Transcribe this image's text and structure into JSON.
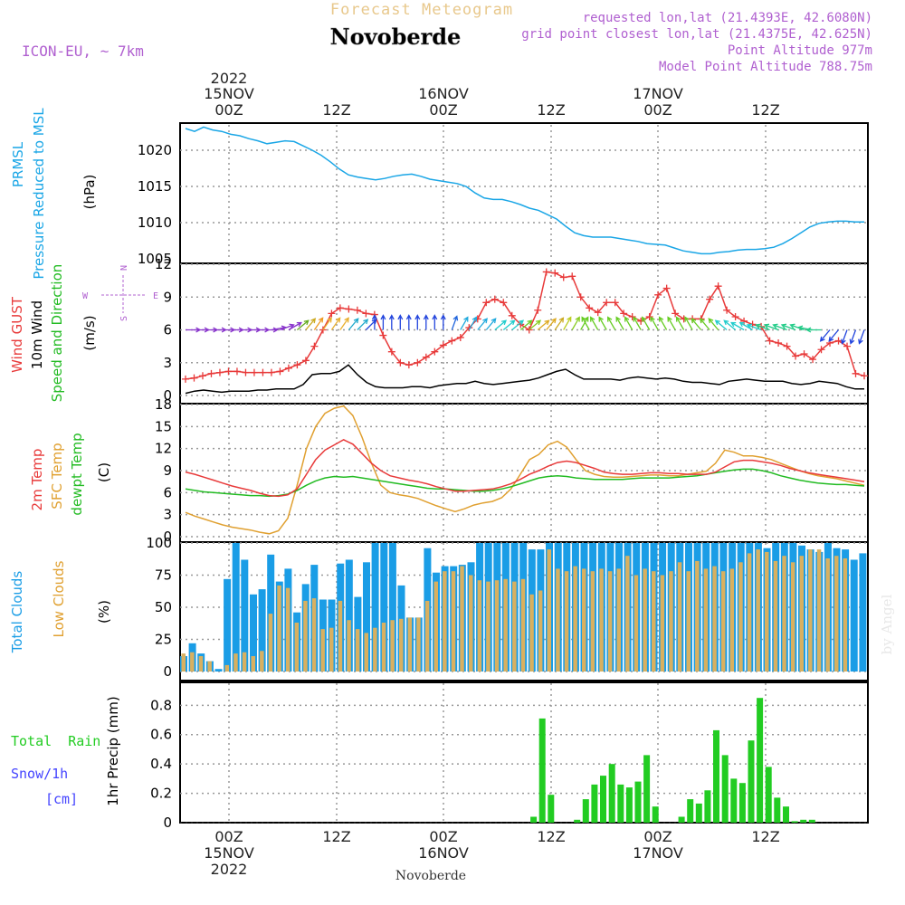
{
  "header": {
    "forecast_title": "Forecast Meteogram",
    "location_name": "Novoberde",
    "model_label": "ICON-EU, ~ 7km",
    "requested_point": "requested lon,lat (21.4393E, 42.6080N)",
    "grid_point": "grid point closest lon,lat (21.4375E, 42.625N)",
    "point_altitude": "Point Altitude 977m",
    "model_altitude": "Model Point Altitude 788.75m"
  },
  "footer": {
    "location_name": "Novoberde",
    "watermark": "by Angel"
  },
  "colors": {
    "pressure": "#1aa6e6",
    "gust": "#e83a3a",
    "wind": "#000000",
    "temp2m": "#e83a3a",
    "sfc": "#e0a030",
    "dewpt": "#22bb22",
    "total_clouds": "#1a9de6",
    "low_clouds": "#d8b060",
    "rain": "#22cc22",
    "snow": "#4444ff",
    "header_purple": "#b060d0",
    "title_tan": "#e8c88c"
  },
  "chart_data": [
    {
      "type": "line",
      "ylabel_lines": [
        "PRMSL",
        "Pressure Reduced to MSL"
      ],
      "unit": "(hPa)",
      "ylim": [
        1005,
        1023.5
      ],
      "yticks": [
        1005,
        1010,
        1015,
        1020
      ],
      "x_top_ticks": [
        "00Z",
        "12Z",
        "00Z",
        "12Z",
        "00Z",
        "12Z"
      ],
      "x_top_dates": [
        "15NOV",
        "16NOV",
        "17NOV"
      ],
      "x_top_year": "2022",
      "series": [
        {
          "values": [
            1023.0,
            1022.6,
            1023.2,
            1022.8,
            1022.6,
            1022.2,
            1022.0,
            1021.6,
            1021.3,
            1020.9,
            1021.1,
            1021.3,
            1021.2,
            1020.6,
            1020.0,
            1019.3,
            1018.4,
            1017.4,
            1016.6,
            1016.3,
            1016.1,
            1015.9,
            1016.1,
            1016.4,
            1016.6,
            1016.7,
            1016.4,
            1016.0,
            1015.8,
            1015.6,
            1015.4,
            1015.0,
            1014.1,
            1013.4,
            1013.2,
            1013.2,
            1012.9,
            1012.5,
            1012.0,
            1011.7,
            1011.1,
            1010.5,
            1009.5,
            1008.6,
            1008.2,
            1008.0,
            1008.0,
            1008.0,
            1007.8,
            1007.6,
            1007.4,
            1007.1,
            1007.0,
            1006.9,
            1006.5,
            1006.1,
            1005.9,
            1005.7,
            1005.7,
            1005.9,
            1006.0,
            1006.2,
            1006.3,
            1006.3,
            1006.4,
            1006.6,
            1007.1,
            1007.8,
            1008.6,
            1009.4,
            1009.9,
            1010.1,
            1010.2,
            1010.2,
            1010.1,
            1010.1
          ]
        }
      ]
    },
    {
      "type": "line",
      "ylabel_lines": [
        "Wind GUST",
        "10m Wind",
        "Speed and Direction"
      ],
      "unit": "(m/s)",
      "compass": {
        "n": "N",
        "s": "S",
        "w": "W",
        "e": "E"
      },
      "ylim": [
        0,
        12
      ],
      "yticks": [
        0,
        3,
        6,
        9,
        12
      ],
      "series": [
        {
          "name": "Wind GUST",
          "values": [
            1.5,
            1.6,
            1.8,
            2.0,
            2.1,
            2.2,
            2.2,
            2.1,
            2.1,
            2.1,
            2.1,
            2.2,
            2.5,
            2.8,
            3.2,
            4.5,
            6.0,
            7.5,
            8.0,
            7.9,
            7.8,
            7.5,
            7.4,
            5.5,
            4.0,
            3.0,
            2.8,
            3.0,
            3.5,
            4.0,
            4.6,
            5.0,
            5.3,
            6.2,
            7.0,
            8.5,
            8.8,
            8.5,
            7.3,
            6.5,
            6.0,
            7.8,
            11.3,
            11.2,
            10.8,
            10.9,
            9.0,
            8.0,
            7.6,
            8.5,
            8.5,
            7.5,
            7.2,
            6.8,
            7.2,
            9.2,
            9.8,
            7.5,
            7.0,
            7.0,
            7.0,
            8.8,
            10.0,
            7.8,
            7.2,
            6.8,
            6.5,
            6.3,
            5.0,
            4.8,
            4.5,
            3.6,
            3.8,
            3.3,
            4.2,
            4.8,
            5.0,
            4.5,
            2.0,
            1.8
          ]
        },
        {
          "name": "10m Wind",
          "values": [
            0.2,
            0.4,
            0.5,
            0.4,
            0.3,
            0.4,
            0.4,
            0.4,
            0.5,
            0.5,
            0.6,
            0.6,
            0.6,
            1.0,
            1.9,
            2.0,
            2.0,
            2.2,
            2.8,
            1.9,
            1.2,
            0.8,
            0.7,
            0.7,
            0.7,
            0.8,
            0.8,
            0.7,
            0.9,
            1.0,
            1.1,
            1.1,
            1.3,
            1.1,
            1.0,
            1.1,
            1.2,
            1.3,
            1.4,
            1.6,
            1.9,
            2.2,
            2.4,
            1.9,
            1.5,
            1.5,
            1.5,
            1.5,
            1.4,
            1.6,
            1.7,
            1.6,
            1.5,
            1.6,
            1.5,
            1.3,
            1.2,
            1.2,
            1.1,
            1.0,
            1.3,
            1.4,
            1.5,
            1.4,
            1.3,
            1.3,
            1.3,
            1.1,
            1.0,
            1.1,
            1.3,
            1.2,
            1.1,
            0.8,
            0.6,
            0.6
          ]
        }
      ],
      "wind_directions_deg": [
        270,
        270,
        270,
        270,
        270,
        270,
        270,
        270,
        270,
        270,
        260,
        250,
        240,
        230,
        220,
        215,
        215,
        215,
        215,
        220,
        225,
        225,
        180,
        180,
        180,
        180,
        180,
        180,
        180,
        180,
        180,
        200,
        210,
        210,
        220,
        220,
        230,
        230,
        230,
        230,
        230,
        230,
        220,
        215,
        210,
        210,
        210,
        150,
        150,
        150,
        150,
        150,
        150,
        150,
        150,
        150,
        150,
        150,
        150,
        150,
        140,
        140,
        140,
        130,
        130,
        120,
        120,
        110,
        110,
        110,
        110,
        110,
        110,
        100,
        90,
        40,
        40,
        20,
        20,
        20
      ],
      "wind_arrow_colors": [
        "#8833cc",
        "#8833cc",
        "#8833cc",
        "#8833cc",
        "#8833cc",
        "#8833cc",
        "#8833cc",
        "#8833cc",
        "#8833cc",
        "#8833cc",
        "#8833cc",
        "#8833cc",
        "#8833cc",
        "#66aa22",
        "#ccaa22",
        "#ee9922",
        "#e8b030",
        "#e8b030",
        "#e8b030",
        "#22aacc",
        "#22aacc",
        "#2244dd",
        "#2244dd",
        "#2244dd",
        "#2244dd",
        "#2244dd",
        "#2244dd",
        "#2244dd",
        "#2244dd",
        "#2244dd",
        "#2244dd",
        "#2266dd",
        "#22aadd",
        "#22aadd",
        "#22aadd",
        "#22aadd",
        "#22cccc",
        "#22cccc",
        "#22cccc",
        "#66cc22",
        "#88cc22",
        "#ddaa22",
        "#ddaa22",
        "#ccaa22",
        "#bbcc22",
        "#88cc22",
        "#66cc22",
        "#66cc22",
        "#66cc22",
        "#66cc22",
        "#66cc22",
        "#66cc22",
        "#66cc22",
        "#66cc22",
        "#66cc22",
        "#66cc22",
        "#66cc22",
        "#66cc22",
        "#66cc22",
        "#66cc22",
        "#66cc22",
        "#66cc22",
        "#66cc22",
        "#22cccc",
        "#22cccc",
        "#22cccc",
        "#22cccc",
        "#22cccc",
        "#22cc88",
        "#22cc88",
        "#22cc88",
        "#22cc88",
        "#22cc88",
        "#22cc88",
        "#22cc88",
        "#2244dd",
        "#2244dd",
        "#2244dd",
        "#2244dd",
        "#2244dd"
      ]
    },
    {
      "type": "line",
      "ylabel_lines": [
        "2m Temp",
        "SFC Temp",
        "dewpt Temp"
      ],
      "unit": "(C)",
      "ylim": [
        0,
        18
      ],
      "yticks": [
        0,
        3,
        6,
        9,
        12,
        15,
        18
      ],
      "series": [
        {
          "name": "2m Temp",
          "values": [
            8.8,
            8.5,
            8.1,
            7.7,
            7.3,
            6.9,
            6.6,
            6.3,
            5.9,
            5.6,
            5.5,
            5.7,
            6.5,
            8.5,
            10.5,
            11.8,
            12.5,
            13.2,
            12.6,
            11.3,
            10.0,
            9.0,
            8.3,
            8.0,
            7.7,
            7.5,
            7.2,
            6.8,
            6.5,
            6.2,
            6.2,
            6.3,
            6.4,
            6.5,
            6.8,
            7.2,
            7.8,
            8.5,
            9.0,
            9.6,
            10.1,
            10.3,
            10.1,
            9.7,
            9.3,
            8.8,
            8.6,
            8.5,
            8.5,
            8.6,
            8.7,
            8.7,
            8.6,
            8.6,
            8.5,
            8.5,
            8.5,
            8.8,
            9.5,
            10.2,
            10.4,
            10.4,
            10.2,
            10.0,
            9.7,
            9.3,
            9.0,
            8.7,
            8.5,
            8.3,
            8.1,
            7.9,
            7.7,
            7.5
          ]
        },
        {
          "name": "SFC Temp",
          "values": [
            3.3,
            2.8,
            2.4,
            2.0,
            1.6,
            1.3,
            1.1,
            0.9,
            0.6,
            0.4,
            0.8,
            2.5,
            7.0,
            12.0,
            15.0,
            16.8,
            17.5,
            17.8,
            16.5,
            13.5,
            10.0,
            7.0,
            6.0,
            5.7,
            5.5,
            5.2,
            4.7,
            4.2,
            3.8,
            3.4,
            3.8,
            4.3,
            4.6,
            4.8,
            5.3,
            6.5,
            8.5,
            10.5,
            11.2,
            12.5,
            13.0,
            12.2,
            10.5,
            9.0,
            8.5,
            8.2,
            8.1,
            8.1,
            8.2,
            8.3,
            8.4,
            8.4,
            8.3,
            8.3,
            8.5,
            8.7,
            8.9,
            10.0,
            11.8,
            11.5,
            11.0,
            11.0,
            10.8,
            10.5,
            10.0,
            9.5,
            9.0,
            8.6,
            8.3,
            8.1,
            7.9,
            7.6,
            7.3,
            7.0
          ]
        },
        {
          "name": "dewpt Temp",
          "values": [
            6.5,
            6.3,
            6.1,
            6.0,
            5.9,
            5.8,
            5.7,
            5.6,
            5.6,
            5.5,
            5.6,
            5.8,
            6.3,
            7.0,
            7.6,
            8.0,
            8.2,
            8.1,
            8.2,
            8.0,
            7.8,
            7.6,
            7.4,
            7.2,
            7.0,
            6.8,
            6.6,
            6.5,
            6.5,
            6.4,
            6.3,
            6.2,
            6.2,
            6.3,
            6.5,
            6.8,
            7.2,
            7.6,
            8.0,
            8.2,
            8.3,
            8.2,
            8.0,
            7.9,
            7.8,
            7.8,
            7.8,
            7.8,
            7.9,
            8.0,
            8.0,
            8.0,
            8.0,
            8.1,
            8.2,
            8.3,
            8.5,
            8.7,
            8.9,
            9.1,
            9.2,
            9.2,
            9.0,
            8.7,
            8.3,
            8.0,
            7.7,
            7.5,
            7.3,
            7.2,
            7.1,
            7.1,
            7.0,
            6.9
          ]
        }
      ]
    },
    {
      "type": "bar",
      "ylabel_lines": [
        "Total Clouds",
        "Low Clouds"
      ],
      "unit": "(%)",
      "ylim": [
        0,
        100
      ],
      "yticks": [
        0,
        25,
        50,
        75,
        100
      ],
      "series": [
        {
          "name": "Total Clouds",
          "values": [
            12,
            22,
            14,
            8,
            2,
            72,
            100,
            87,
            60,
            64,
            91,
            70,
            80,
            46,
            68,
            83,
            56,
            56,
            84,
            87,
            58,
            85,
            100,
            100,
            100,
            67,
            42,
            42,
            96,
            77,
            82,
            82,
            83,
            85,
            100,
            100,
            100,
            100,
            100,
            100,
            95,
            95,
            100,
            100,
            100,
            100,
            100,
            100,
            100,
            100,
            100,
            100,
            100,
            100,
            100,
            100,
            100,
            100,
            100,
            100,
            100,
            100,
            100,
            100,
            100,
            100,
            100,
            96,
            100,
            100,
            100,
            98,
            95,
            93,
            100,
            96,
            95,
            87,
            92
          ]
        },
        {
          "name": "Low Clouds",
          "values": [
            14,
            15,
            12,
            8,
            0,
            5,
            14,
            15,
            12,
            16,
            45,
            67,
            65,
            38,
            55,
            57,
            33,
            34,
            55,
            40,
            33,
            30,
            34,
            38,
            40,
            41,
            42,
            42,
            55,
            70,
            78,
            78,
            82,
            75,
            71,
            70,
            71,
            72,
            70,
            72,
            60,
            63,
            95,
            80,
            78,
            82,
            80,
            78,
            80,
            78,
            80,
            90,
            75,
            80,
            78,
            75,
            78,
            85,
            78,
            86,
            80,
            82,
            78,
            80,
            85,
            92,
            95,
            93,
            86,
            90,
            85,
            90,
            95,
            95,
            88,
            90,
            88
          ]
        }
      ]
    },
    {
      "type": "bar",
      "legend_lines": [
        "Total  Rain",
        "Snow/1h",
        "[cm]"
      ],
      "ylabel": "1hr Precip (mm)",
      "ylim": [
        0,
        0.95
      ],
      "yticks": [
        "0",
        "0.2",
        "0.4",
        "0.6",
        "0.8"
      ],
      "x_bottom_ticks": [
        "00Z",
        "12Z",
        "00Z",
        "12Z",
        "00Z",
        "12Z"
      ],
      "x_bottom_dates": [
        "15NOV",
        "16NOV",
        "17NOV"
      ],
      "x_bottom_year": "2022",
      "series": [
        {
          "name": "Total Rain",
          "values": [
            0,
            0,
            0,
            0,
            0,
            0,
            0,
            0,
            0,
            0,
            0,
            0,
            0,
            0,
            0,
            0,
            0,
            0,
            0,
            0,
            0,
            0,
            0,
            0,
            0,
            0,
            0,
            0,
            0,
            0,
            0,
            0,
            0,
            0,
            0,
            0,
            0,
            0,
            0,
            0,
            0.04,
            0.71,
            0.19,
            0,
            0,
            0.02,
            0.16,
            0.26,
            0.32,
            0.4,
            0.26,
            0.24,
            0.28,
            0.46,
            0.11,
            0,
            0,
            0.04,
            0.16,
            0.13,
            0.22,
            0.63,
            0.46,
            0.3,
            0.27,
            0.56,
            0.85,
            0.38,
            0.17,
            0.11,
            0.01,
            0.02,
            0.02,
            0,
            0,
            0,
            0,
            0,
            0
          ]
        }
      ]
    }
  ]
}
